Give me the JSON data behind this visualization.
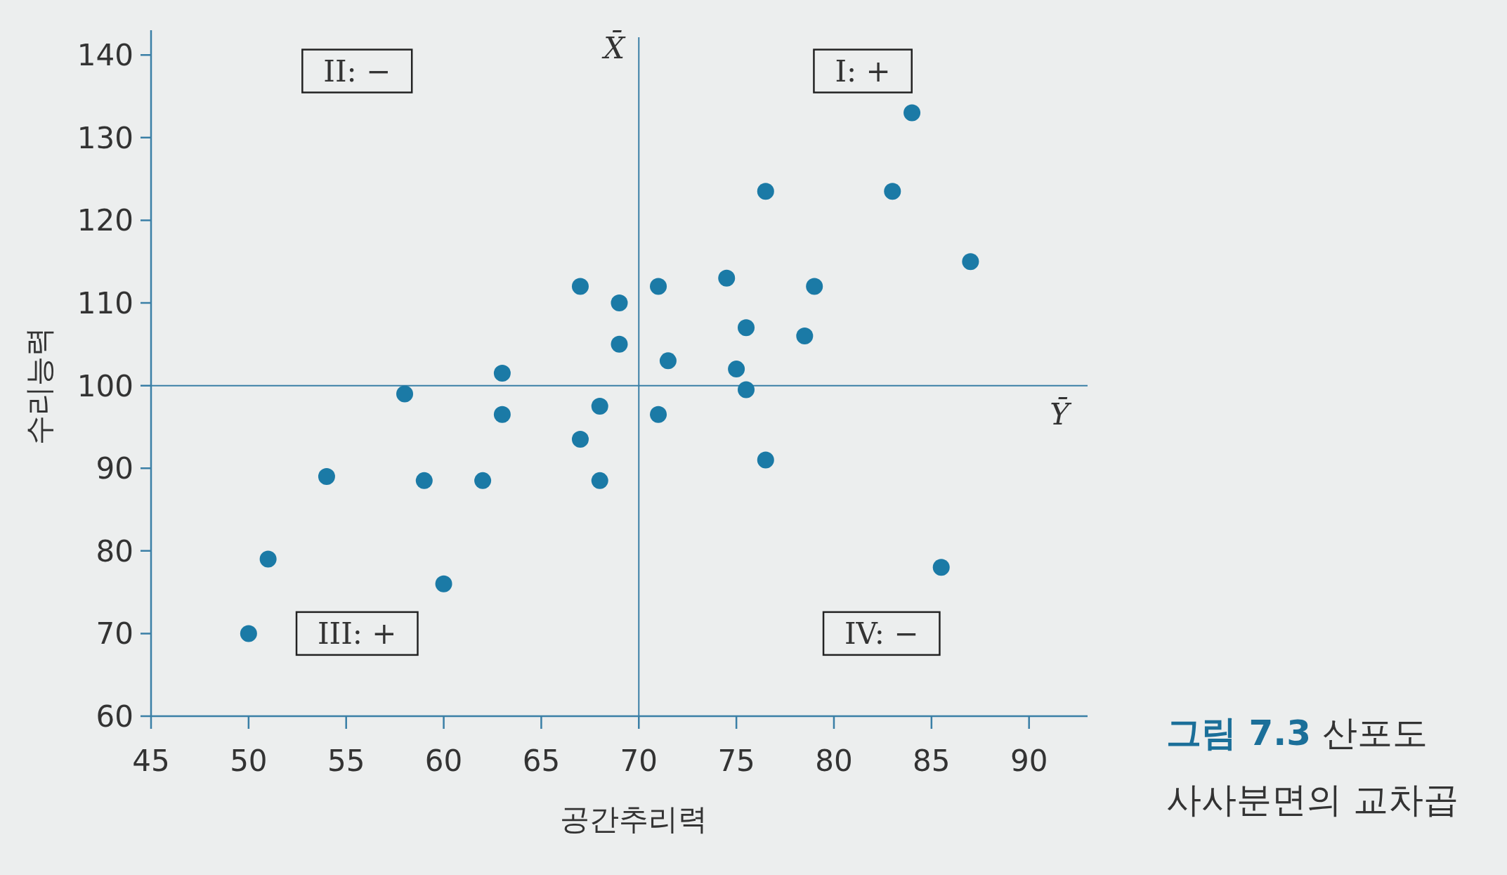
{
  "chart_data": {
    "type": "scatter",
    "xlabel": "공간추리력",
    "ylabel": "수리능력",
    "x": [
      50,
      51,
      54,
      58,
      59,
      60,
      62,
      63,
      63,
      67,
      67,
      68,
      68,
      69,
      69,
      71,
      71,
      71.5,
      74.5,
      75,
      75.5,
      75.5,
      76.5,
      76.5,
      78.5,
      79,
      83,
      84,
      85.5,
      87
    ],
    "values": [
      70,
      79,
      89,
      99,
      88.5,
      76,
      88.5,
      101.5,
      96.5,
      112,
      93.5,
      97.5,
      88.5,
      110,
      105,
      112,
      96.5,
      103,
      113,
      102,
      107,
      99.5,
      91,
      123.5,
      106,
      112,
      123.5,
      133,
      78,
      115
    ],
    "color": "#1b7aa6",
    "marker": "circle",
    "grid": false,
    "xlim": [
      45,
      93
    ],
    "ylim": [
      60,
      143
    ],
    "xticks": [
      45,
      50,
      55,
      60,
      65,
      70,
      75,
      80,
      85,
      90
    ],
    "yticks": [
      60,
      70,
      80,
      90,
      100,
      110,
      120,
      130,
      140
    ],
    "ref_lines": [
      {
        "axis": "x",
        "value": 70,
        "label": "X̄",
        "color": "#3a7fa6"
      },
      {
        "axis": "y",
        "value": 100,
        "label": "Ȳ",
        "color": "#3a7fa6"
      }
    ],
    "annotations": [
      "II:  −",
      "I:  +",
      "III:  +",
      "IV:  −",
      "**그림 7.3**  산포도",
      "사사분면의 교차곱"
    ]
  }
}
